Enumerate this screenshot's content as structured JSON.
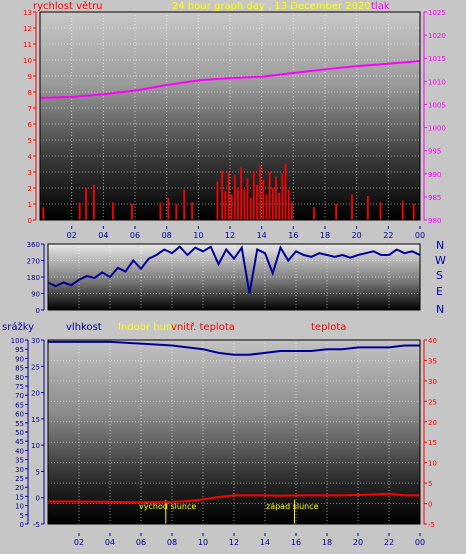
{
  "header": {
    "wind_speed_label": "rychlost větru",
    "title": "24 hour graph day , 13 December 2020",
    "pressure_label": "tlak"
  },
  "direction_labels": [
    "N",
    "W",
    "S",
    "E",
    "N"
  ],
  "bottom_header": {
    "rain_label": "srážky",
    "humidity_label": "vlhkost",
    "indoor_hum_label": "Indoor hum",
    "indoor_temp_label": "vnitř. teplota",
    "temp_label": "teplota"
  },
  "annotations": {
    "sunrise": "východ slunce",
    "sunset": "západ slunce"
  },
  "colors": {
    "wind": "#ff0000",
    "pressure": "#ff00ff",
    "direction": "#000099",
    "humidity": "#000099",
    "temperature": "#ff0000",
    "title": "#ffff00",
    "axis_left_top": "#ff0000",
    "axis_right_top": "#ff00ff",
    "axis_left_bottom": "#000099",
    "axis_right_bottom": "#ff0000"
  },
  "chart_data": [
    {
      "type": "bar",
      "name": "wind-pressure",
      "x_ticks": [
        "02",
        "04",
        "06",
        "08",
        "10",
        "12",
        "14",
        "16",
        "18",
        "20",
        "22",
        "00"
      ],
      "xlim": [
        0,
        24
      ],
      "ylim_left": [
        0,
        13
      ],
      "yticks_left": [
        0,
        1,
        2,
        3,
        4,
        5,
        6,
        7,
        8,
        9,
        10,
        11,
        12,
        13
      ],
      "ylim_right": [
        980,
        1025
      ],
      "yticks_right": [
        980,
        985,
        990,
        995,
        1000,
        1005,
        1010,
        1015,
        1020,
        1025
      ],
      "wind_bars": [
        [
          0.2,
          0.8
        ],
        [
          2.5,
          1.1
        ],
        [
          2.9,
          2.0
        ],
        [
          3.4,
          2.2
        ],
        [
          4.6,
          1.1
        ],
        [
          5.8,
          1.0
        ],
        [
          7.6,
          1.1
        ],
        [
          8.1,
          1.4
        ],
        [
          8.6,
          1.0
        ],
        [
          9.1,
          1.9
        ],
        [
          9.6,
          1.1
        ],
        [
          11.2,
          2.4
        ],
        [
          11.5,
          3.1
        ],
        [
          11.7,
          1.8
        ],
        [
          11.9,
          3.0
        ],
        [
          12.1,
          1.6
        ],
        [
          12.3,
          2.8
        ],
        [
          12.5,
          2.0
        ],
        [
          12.7,
          3.3
        ],
        [
          12.9,
          1.9
        ],
        [
          13.1,
          2.6
        ],
        [
          13.3,
          1.4
        ],
        [
          13.5,
          3.0
        ],
        [
          13.7,
          2.2
        ],
        [
          13.9,
          3.4
        ],
        [
          14.1,
          2.5
        ],
        [
          14.3,
          1.6
        ],
        [
          14.5,
          3.0
        ],
        [
          14.7,
          2.0
        ],
        [
          14.9,
          2.7
        ],
        [
          15.1,
          1.7
        ],
        [
          15.3,
          2.9
        ],
        [
          15.5,
          3.5
        ],
        [
          15.7,
          1.9
        ],
        [
          15.9,
          1.1
        ],
        [
          17.3,
          0.8
        ],
        [
          18.7,
          1.0
        ],
        [
          19.7,
          1.6
        ],
        [
          20.7,
          1.5
        ],
        [
          21.5,
          1.1
        ],
        [
          22.9,
          1.2
        ],
        [
          23.6,
          1.0
        ]
      ],
      "pressure": {
        "x": [
          0,
          2,
          4,
          6,
          8,
          10,
          12,
          14,
          16,
          18,
          20,
          22,
          24
        ],
        "y": [
          1006.4,
          1006.6,
          1007.2,
          1008.0,
          1009.2,
          1010.2,
          1010.7,
          1011.0,
          1011.8,
          1012.6,
          1013.3,
          1013.8,
          1014.4
        ]
      }
    },
    {
      "type": "line",
      "name": "wind-direction",
      "xlim": [
        0,
        24
      ],
      "ylim": [
        0,
        360
      ],
      "yticks": [
        0,
        90,
        180,
        270,
        360
      ],
      "x": [
        0,
        0.5,
        1,
        1.5,
        2,
        2.5,
        3,
        3.5,
        4,
        4.5,
        5,
        5.5,
        6,
        6.5,
        7,
        7.5,
        8,
        8.5,
        9,
        9.5,
        10,
        10.5,
        11,
        11.5,
        12,
        12.5,
        13,
        13.5,
        14,
        14.5,
        15,
        15.5,
        16,
        16.5,
        17,
        17.5,
        18,
        18.5,
        19,
        19.5,
        20,
        20.5,
        21,
        21.5,
        22,
        22.5,
        23,
        23.5,
        24
      ],
      "y": [
        150,
        130,
        150,
        135,
        165,
        185,
        175,
        205,
        180,
        230,
        210,
        270,
        225,
        280,
        300,
        330,
        310,
        345,
        300,
        340,
        320,
        345,
        250,
        330,
        280,
        340,
        90,
        330,
        310,
        200,
        340,
        270,
        320,
        300,
        290,
        310,
        300,
        290,
        300,
        285,
        300,
        310,
        320,
        300,
        300,
        330,
        310,
        320,
        300
      ]
    },
    {
      "type": "line",
      "name": "humidity-temperature",
      "x_ticks": [
        "02",
        "04",
        "06",
        "08",
        "10",
        "12",
        "14",
        "16",
        "18",
        "20",
        "22",
        "00"
      ],
      "xlim": [
        0,
        24
      ],
      "ylim_left_outer": [
        0,
        100
      ],
      "yticks_left_outer": [
        0,
        5,
        10,
        15,
        20,
        25,
        30,
        35,
        40,
        45,
        50,
        55,
        60,
        65,
        70,
        75,
        80,
        85,
        90,
        95,
        100
      ],
      "ylim_left_inner": [
        -5,
        30
      ],
      "yticks_left_inner": [
        -5,
        0,
        5,
        10,
        15,
        20,
        25,
        30
      ],
      "ylim_right": [
        -5,
        40
      ],
      "yticks_right": [
        -5,
        0,
        5,
        10,
        15,
        20,
        25,
        30,
        35,
        40
      ],
      "humidity": {
        "x": [
          0,
          2,
          4,
          6,
          8,
          9,
          10,
          11,
          12,
          13,
          14,
          15,
          16,
          17,
          18,
          19,
          20,
          21,
          22,
          23,
          24
        ],
        "y": [
          99,
          99,
          99,
          98,
          97,
          96,
          95,
          93,
          92,
          92,
          93,
          94,
          94,
          94,
          95,
          95,
          96,
          96,
          96,
          97,
          97
        ]
      },
      "temperature": {
        "x": [
          0,
          2,
          4,
          6,
          8,
          9,
          10,
          11,
          12,
          13,
          14,
          15,
          16,
          17,
          18,
          19,
          20,
          21,
          22,
          23,
          24
        ],
        "y": [
          0.5,
          0.5,
          0.4,
          0.3,
          0.4,
          0.6,
          1.0,
          1.6,
          2.0,
          2.0,
          2.0,
          1.9,
          2.0,
          2.0,
          2.0,
          2.0,
          2.1,
          2.2,
          2.4,
          2.0,
          2.0
        ]
      },
      "sunrise_hour": 7.6,
      "sunset_hour": 15.9
    }
  ]
}
